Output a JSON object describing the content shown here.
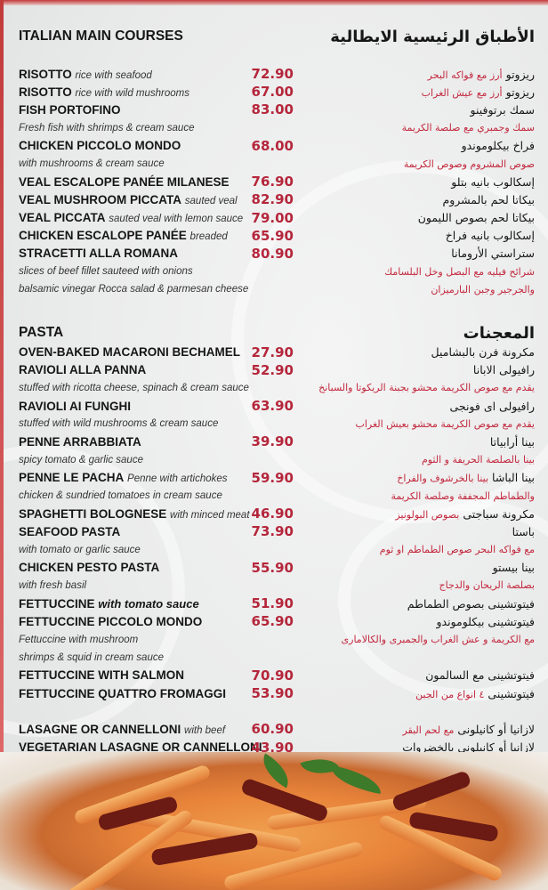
{
  "main_courses": {
    "title_en": "ITALIAN MAIN COURSES",
    "title_ar": "الأطباق الرئيسية الايطالية",
    "rows": [
      {
        "name": "RISOTTO",
        "note": "rice with seafood",
        "price": "72.90",
        "ar": "ريزوتو",
        "ar_note": "أرز مع فواكه البحر"
      },
      {
        "name": "RISOTTO",
        "note": "rice with wild mushrooms",
        "price": "67.00",
        "ar": "ريزوتو",
        "ar_note": "أرز مع عيش الغراب"
      },
      {
        "name": "FISH PORTOFINO",
        "price": "83.00",
        "ar": "سمك برتوفينو"
      },
      {
        "desc": "Fresh fish with shrimps & cream sauce",
        "ar_desc": "سمك وجمبري مع صلصة الكريمة"
      },
      {
        "name": "CHICKEN PICCOLO MONDO",
        "price": "68.00",
        "ar": "فراخ بيكلوموندو"
      },
      {
        "desc": "with mushrooms & cream sauce",
        "ar_desc": "صوص المشروم وصوص الكريمة"
      },
      {
        "name": "VEAL ESCALOPE PANÉE MILANESE",
        "price": "76.90",
        "ar": "إسكالوب بانيه بتلو"
      },
      {
        "name": "VEAL MUSHROOM PICCATA",
        "note": "sauted veal",
        "price": "82.90",
        "ar": "بيكاتا لحم بالمشروم"
      },
      {
        "name": "VEAL PICCATA",
        "note": "sauted veal with lemon sauce",
        "price": "79.00",
        "ar": "بيكاتا لحم بصوص الليمون"
      },
      {
        "name": "CHICKEN ESCALOPE PANÉE",
        "note": "breaded",
        "price": "65.90",
        "ar": "إسكالوب بانيه فراخ"
      },
      {
        "name": "STRACETTI ALLA ROMANA",
        "price": "80.90",
        "ar": "ستراستي الأرومانا"
      },
      {
        "desc": "slices of beef fillet sauteed with onions",
        "ar_desc": "شرائح فيليه مع البصل وخل البلسامك"
      },
      {
        "desc": "balsamic vinegar Rocca salad & parmesan cheese",
        "ar_desc": "والجرجير وجبن البارميزان"
      }
    ]
  },
  "pasta": {
    "title_en": "PASTA",
    "title_ar": "المعجنات",
    "rows": [
      {
        "name": "OVEN-BAKED MACARONI BECHAMEL",
        "price": "27.90",
        "ar": "مكرونة فرن بالبشاميل"
      },
      {
        "name": "RAVIOLI ALLA PANNA",
        "price": "52.90",
        "ar": "رافيولى الابانا"
      },
      {
        "desc": "stuffed with ricotta cheese, spinach & cream sauce",
        "ar_desc": "يقدم مع صوص الكريمة محشو بجبنة الريكوتا والسبانخ"
      },
      {
        "name": "RAVIOLI AI FUNGHI",
        "price": "63.90",
        "ar": "رافيولى اى فونجى"
      },
      {
        "desc": "stuffed with wild mushrooms & cream sauce",
        "ar_desc": "يقدم مع صوص الكريمة محشو بعيش الغراب"
      },
      {
        "name": "PENNE ARRABBIATA",
        "price": "39.90",
        "ar": "بينا أرابياتا"
      },
      {
        "desc": "spicy tomato & garlic sauce",
        "ar_desc": "بينا بالصلصة الحريفة و الثوم"
      },
      {
        "name": "PENNE LE PACHA",
        "note": "Penne with artichokes",
        "price": "59.90",
        "ar": "بينا الباشا",
        "ar_note": "بينا بالخرشوف والفراخ"
      },
      {
        "desc": "chicken & sundried tomatoes in cream sauce",
        "ar_desc": "والطماطم المجففة وصلصة الكريمة"
      },
      {
        "name": "SPAGHETTI BOLOGNESE",
        "note": "with minced meat",
        "price": "46.90",
        "ar": "مكرونة سباجتى",
        "ar_note": "بصوص البولونيز"
      },
      {
        "name": "SEAFOOD PASTA",
        "price": "73.90",
        "ar": "باستا"
      },
      {
        "desc": "with tomato or garlic sauce",
        "ar_desc": "مع فواكه البحر  صوص الطماطم او ثوم"
      },
      {
        "name": "CHICKEN PESTO PASTA",
        "price": "55.90",
        "ar": "بينا بيستو"
      },
      {
        "desc": "with fresh basil",
        "ar_desc": "بصلصة الريحان والدجاج"
      },
      {
        "name": "FETTUCCINE",
        "note": "with tomato sauce",
        "note_bold": true,
        "price": "51.90",
        "ar": "فيتوتشينى بصوص الطماطم"
      },
      {
        "name": "FETTUCCINE PICCOLO MONDO",
        "price": "65.90",
        "ar": "فيتوتشينى بيكلوموندو"
      },
      {
        "desc": "Fettuccine with mushroom",
        "ar_desc": "مع الكريمة و عش الغراب والجمبرى والكالامارى"
      },
      {
        "desc": " shrimps & squid in cream sauce"
      },
      {
        "name": "FETTUCCINE WITH SALMON",
        "price": "70.90",
        "ar": "فيتوتشينى مع السالمون"
      },
      {
        "name": "FETTUCCINE QUATTRO FROMAGGI",
        "price": "53.90",
        "ar": "فيتوتشينى",
        "ar_note": "٤ انواع من الجبن"
      },
      {
        "gap": true
      },
      {
        "name": "LASAGNE OR CANNELLONI",
        "note": "with beef",
        "price": "60.90",
        "ar": "لازانيا  أو كانيلونى",
        "ar_note": "مع لحم البقر"
      },
      {
        "name": "VEGETARIAN LASAGNE OR CANNELLONI",
        "price": "43.90",
        "ar": "لازانيا أو كانيلونى بالخضروات"
      }
    ]
  },
  "colors": {
    "accent": "#b5263b",
    "text": "#161616",
    "background": "#eceded"
  },
  "photo": {
    "subject": "penne-pasta-with-sundried-tomatoes-photo"
  }
}
